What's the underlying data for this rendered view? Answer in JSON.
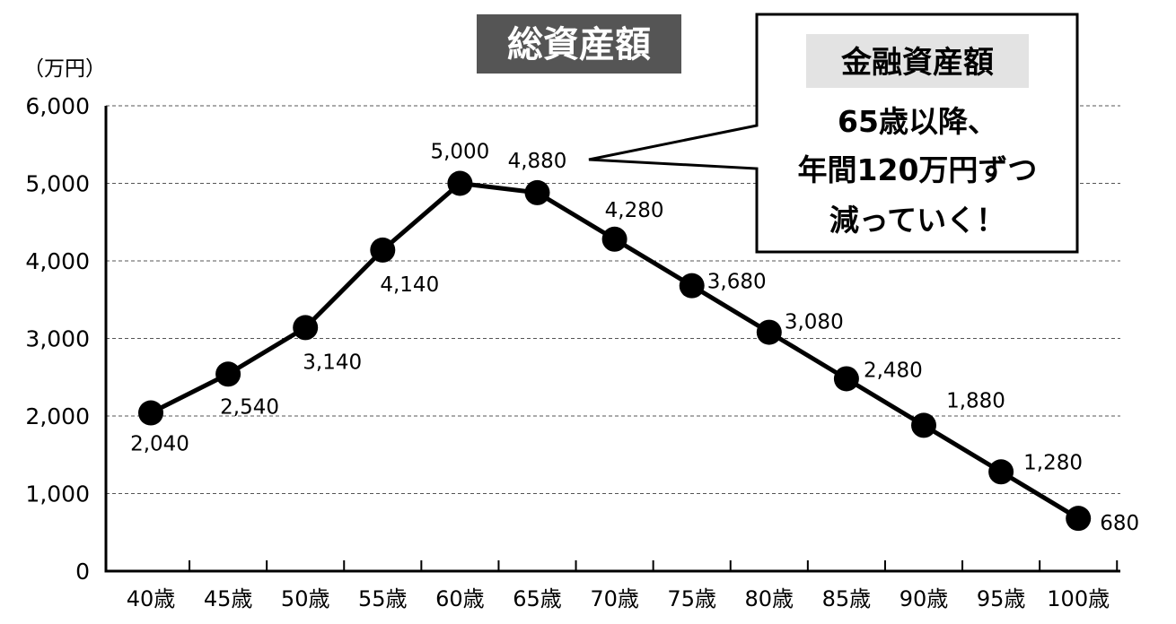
{
  "chart_data": {
    "type": "line",
    "title": "総資産額",
    "ylabel": "（万円）",
    "xlabel": "",
    "ylim": [
      0,
      6000
    ],
    "yticks": [
      0,
      1000,
      2000,
      3000,
      4000,
      5000,
      6000
    ],
    "ytick_labels": [
      "0",
      "1,000",
      "2,000",
      "3,000",
      "4,000",
      "5,000",
      "6,000"
    ],
    "grid": true,
    "categories": [
      "40歳",
      "45歳",
      "50歳",
      "55歳",
      "60歳",
      "65歳",
      "70歳",
      "75歳",
      "80歳",
      "85歳",
      "90歳",
      "95歳",
      "100歳"
    ],
    "values": [
      2040,
      2540,
      3140,
      4140,
      5000,
      4880,
      4280,
      3680,
      3080,
      2480,
      1880,
      1280,
      680
    ],
    "value_labels": [
      "2,040",
      "2,540",
      "3,140",
      "4,140",
      "5,000",
      "4,880",
      "4,280",
      "3,680",
      "3,080",
      "2,480",
      "1,880",
      "1,280",
      "680"
    ],
    "line_color": "#000000",
    "annotation": {
      "heading": "金融資産額",
      "lines": [
        "65歳以降、",
        "年間120万円ずつ",
        "減っていく！"
      ],
      "points_to": "65歳"
    }
  }
}
